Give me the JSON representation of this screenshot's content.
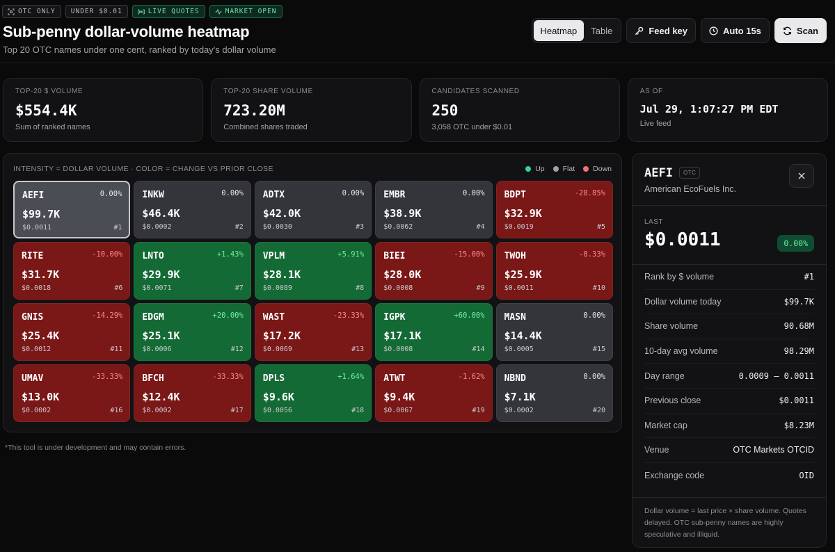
{
  "badges": {
    "otc_only": "OTC ONLY",
    "under": "UNDER $0.01",
    "live": "LIVE QUOTES",
    "market": "MARKET OPEN"
  },
  "header": {
    "title": "Sub-penny dollar-volume heatmap",
    "subtitle": "Top 20 OTC names under one cent, ranked by today's dollar volume"
  },
  "toolbar": {
    "heatmap": "Heatmap",
    "table": "Table",
    "feed_key": "Feed key",
    "auto": "Auto 15s",
    "scan": "Scan"
  },
  "stats": [
    {
      "label": "TOP-20 $ VOLUME",
      "value": "$554.4K",
      "sub": "Sum of ranked names"
    },
    {
      "label": "TOP-20 SHARE VOLUME",
      "value": "723.20M",
      "sub": "Combined shares traded"
    },
    {
      "label": "CANDIDATES SCANNED",
      "value": "250",
      "sub": "3,058 OTC under $0.01"
    },
    {
      "label": "AS OF",
      "value": "Jul 29, 1:07:27 PM EDT",
      "sub": "Live feed"
    }
  ],
  "heatmap": {
    "caption": "INTENSITY = DOLLAR VOLUME · COLOR = CHANGE VS PRIOR CLOSE",
    "legend": {
      "up": "Up",
      "flat": "Flat",
      "down": "Down"
    },
    "colors": {
      "up": "#34d399",
      "flat": "#9ca3af",
      "down": "#f87171"
    },
    "tiles": [
      {
        "sym": "AEFI",
        "chg": "0.00%",
        "val": "$99.7K",
        "price": "$0.0011",
        "rank": "#1",
        "dir": "flat",
        "selected": true
      },
      {
        "sym": "INKW",
        "chg": "0.00%",
        "val": "$46.4K",
        "price": "$0.0002",
        "rank": "#2",
        "dir": "flat"
      },
      {
        "sym": "ADTX",
        "chg": "0.00%",
        "val": "$42.0K",
        "price": "$0.0030",
        "rank": "#3",
        "dir": "flat"
      },
      {
        "sym": "EMBR",
        "chg": "0.00%",
        "val": "$38.9K",
        "price": "$0.0062",
        "rank": "#4",
        "dir": "flat"
      },
      {
        "sym": "BDPT",
        "chg": "-28.85%",
        "val": "$32.9K",
        "price": "$0.0019",
        "rank": "#5",
        "dir": "down"
      },
      {
        "sym": "RITE",
        "chg": "-10.00%",
        "val": "$31.7K",
        "price": "$0.0018",
        "rank": "#6",
        "dir": "down"
      },
      {
        "sym": "LNTO",
        "chg": "+1.43%",
        "val": "$29.9K",
        "price": "$0.0071",
        "rank": "#7",
        "dir": "up"
      },
      {
        "sym": "VPLM",
        "chg": "+5.91%",
        "val": "$28.1K",
        "price": "$0.0089",
        "rank": "#8",
        "dir": "up"
      },
      {
        "sym": "BIEI",
        "chg": "-15.00%",
        "val": "$28.0K",
        "price": "$0.0008",
        "rank": "#9",
        "dir": "down"
      },
      {
        "sym": "TWOH",
        "chg": "-8.33%",
        "val": "$25.9K",
        "price": "$0.0011",
        "rank": "#10",
        "dir": "down"
      },
      {
        "sym": "GNIS",
        "chg": "-14.29%",
        "val": "$25.4K",
        "price": "$0.0012",
        "rank": "#11",
        "dir": "down"
      },
      {
        "sym": "EDGM",
        "chg": "+20.00%",
        "val": "$25.1K",
        "price": "$0.0006",
        "rank": "#12",
        "dir": "up"
      },
      {
        "sym": "WAST",
        "chg": "-23.33%",
        "val": "$17.2K",
        "price": "$0.0069",
        "rank": "#13",
        "dir": "down"
      },
      {
        "sym": "IGPK",
        "chg": "+60.00%",
        "val": "$17.1K",
        "price": "$0.0008",
        "rank": "#14",
        "dir": "up"
      },
      {
        "sym": "MASN",
        "chg": "0.00%",
        "val": "$14.4K",
        "price": "$0.0005",
        "rank": "#15",
        "dir": "flat"
      },
      {
        "sym": "UMAV",
        "chg": "-33.33%",
        "val": "$13.0K",
        "price": "$0.0002",
        "rank": "#16",
        "dir": "down"
      },
      {
        "sym": "BFCH",
        "chg": "-33.33%",
        "val": "$12.4K",
        "price": "$0.0002",
        "rank": "#17",
        "dir": "down"
      },
      {
        "sym": "DPLS",
        "chg": "+1.64%",
        "val": "$9.6K",
        "price": "$0.0056",
        "rank": "#18",
        "dir": "up"
      },
      {
        "sym": "ATWT",
        "chg": "-1.62%",
        "val": "$9.4K",
        "price": "$0.0067",
        "rank": "#19",
        "dir": "down"
      },
      {
        "sym": "NBND",
        "chg": "0.00%",
        "val": "$7.1K",
        "price": "$0.0002",
        "rank": "#20",
        "dir": "flat"
      }
    ]
  },
  "footnote": "*This tool is under development and may contain errors.",
  "detail": {
    "symbol": "AEFI",
    "tag": "OTC",
    "name": "American EcoFuels Inc.",
    "last_label": "LAST",
    "last": "$0.0011",
    "change": "0.00%",
    "rows": [
      {
        "label": "Rank by $ volume",
        "value": "#1"
      },
      {
        "label": "Dollar volume today",
        "value": "$99.7K"
      },
      {
        "label": "Share volume",
        "value": "90.68M"
      },
      {
        "label": "10-day avg volume",
        "value": "98.29M"
      },
      {
        "label": "Day range",
        "value": "0.0009 – 0.0011"
      },
      {
        "label": "Previous close",
        "value": "$0.0011"
      },
      {
        "label": "Market cap",
        "value": "$8.23M"
      },
      {
        "label": "Venue",
        "value": "OTC Markets OTCID",
        "sans": true
      },
      {
        "label": "Exchange code",
        "value": "OID"
      }
    ],
    "note": "Dollar volume = last price × share volume. Quotes delayed. OTC sub-penny names are highly speculative and illiquid."
  }
}
